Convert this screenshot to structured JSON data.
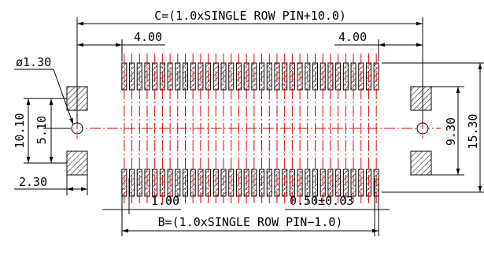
{
  "drawing": {
    "pin_count_per_row": 34,
    "dimensions": {
      "c_width": "C=(1.0xSINGLE ROW PIN+10.0)",
      "edge_left": "4.00",
      "edge_right": "4.00",
      "hole_dia": "ø1.30",
      "height_outer": "10.10",
      "height_inner": "5.10",
      "boss_offset": "2.30",
      "pitch_pair": "1.00",
      "pitch": "0.50±0.03",
      "b_width": "B=(1.0xSINGLE ROW PIN−1.0)",
      "right_height_inner": "9.30",
      "right_height_outer": "15.30"
    }
  }
}
